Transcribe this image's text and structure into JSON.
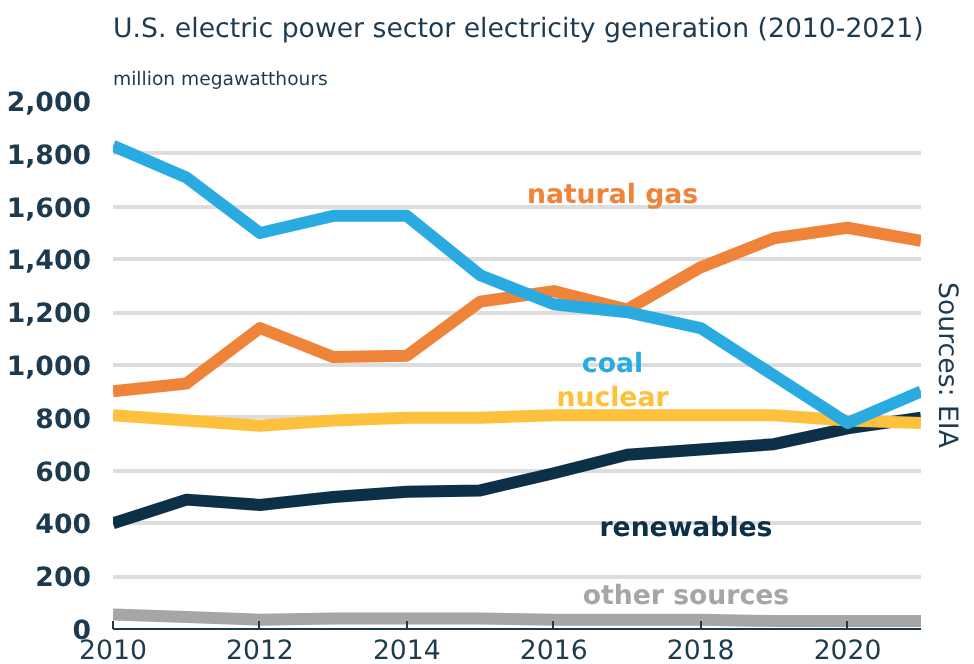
{
  "chart_data": {
    "type": "line",
    "title": "U.S. electric power sector electricity generation (2010-2021)",
    "ylabel": "million megawatthours",
    "x": [
      2010,
      2011,
      2012,
      2013,
      2014,
      2015,
      2016,
      2017,
      2018,
      2019,
      2020,
      2021
    ],
    "series": [
      {
        "name": "other sources",
        "color": "#a6a6a6",
        "values": [
          55,
          45,
          35,
          40,
          40,
          40,
          35,
          35,
          35,
          30,
          30,
          30
        ]
      },
      {
        "name": "renewables",
        "color": "#0b3048",
        "values": [
          400,
          490,
          470,
          500,
          520,
          525,
          590,
          660,
          680,
          700,
          760,
          800
        ]
      },
      {
        "name": "nuclear",
        "color": "#fdc13e",
        "values": [
          810,
          790,
          770,
          790,
          800,
          800,
          810,
          810,
          810,
          810,
          790,
          780
        ]
      },
      {
        "name": "natural gas",
        "color": "#f0833a",
        "values": [
          900,
          930,
          1140,
          1030,
          1035,
          1240,
          1280,
          1210,
          1370,
          1480,
          1520,
          1470
        ]
      },
      {
        "name": "coal",
        "color": "#29abe2",
        "values": [
          1830,
          1710,
          1500,
          1565,
          1565,
          1340,
          1230,
          1200,
          1140,
          960,
          780,
          900
        ]
      }
    ],
    "xlim": [
      2010,
      2021
    ],
    "xticks": [
      2010,
      2012,
      2014,
      2016,
      2018,
      2020
    ],
    "ylim": [
      0,
      2000
    ],
    "yticks": [
      {
        "value": 0,
        "label": "0"
      },
      {
        "value": 200,
        "label": "200"
      },
      {
        "value": 400,
        "label": "400"
      },
      {
        "value": 600,
        "label": "600"
      },
      {
        "value": 800,
        "label": "800"
      },
      {
        "value": 1000,
        "label": "1,000"
      },
      {
        "value": 1200,
        "label": "1,200"
      },
      {
        "value": 1400,
        "label": "1,400"
      },
      {
        "value": 1600,
        "label": "1,600"
      },
      {
        "value": 1800,
        "label": "1,800"
      },
      {
        "value": 2000,
        "label": "2,000"
      }
    ],
    "grid": "y",
    "legend": false,
    "marker": "none",
    "line_style": "solid",
    "annotations": [
      "Sources: EIA"
    ]
  }
}
